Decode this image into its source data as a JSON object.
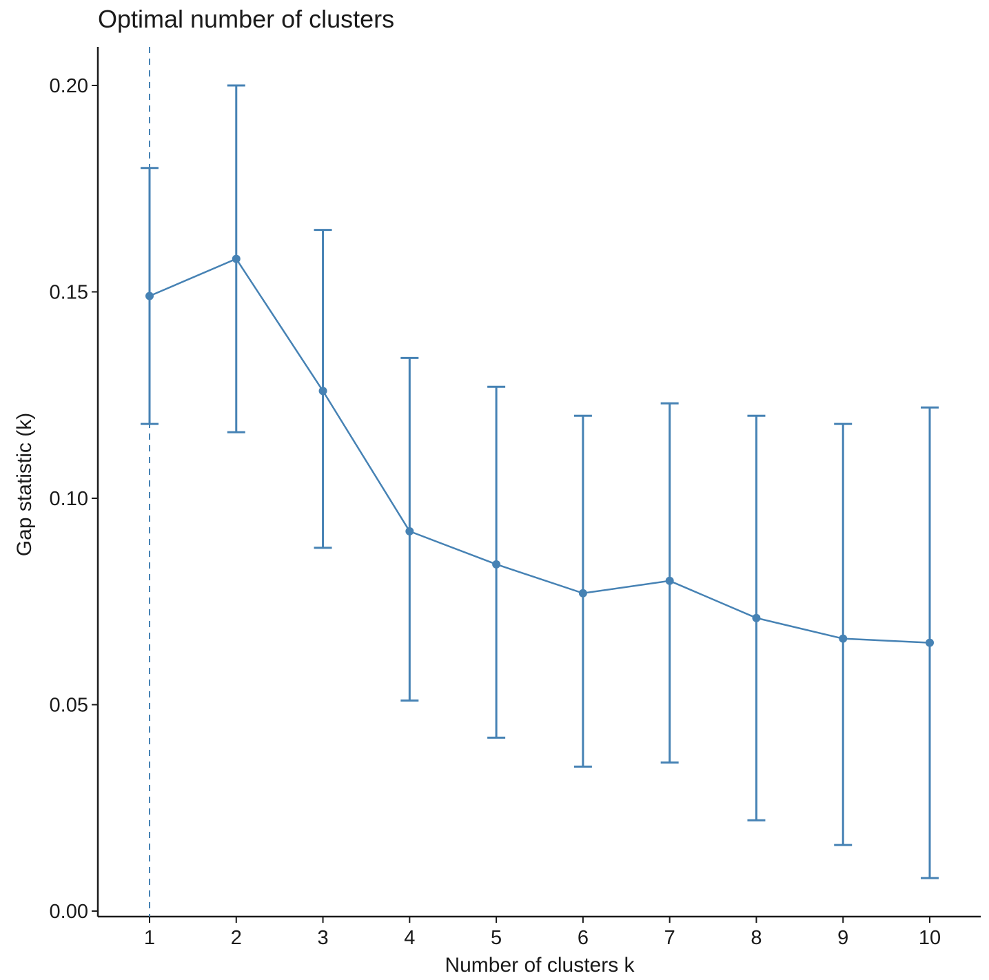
{
  "chart_data": {
    "type": "line",
    "title": "Optimal number of clusters",
    "xlabel": "Number of clusters k",
    "ylabel": "Gap statistic (k)",
    "x": [
      1,
      2,
      3,
      4,
      5,
      6,
      7,
      8,
      9,
      10
    ],
    "x_tick_labels": [
      "1",
      "2",
      "3",
      "4",
      "5",
      "6",
      "7",
      "8",
      "9",
      "10"
    ],
    "y_ticks": [
      0.0,
      0.05,
      0.1,
      0.15,
      0.2
    ],
    "y_tick_labels": [
      "0.00",
      "0.05",
      "0.10",
      "0.15",
      "0.20"
    ],
    "ylim": [
      0.0,
      0.209
    ],
    "xlim": [
      0.4,
      10.6
    ],
    "series": [
      {
        "values": [
          0.149,
          0.158,
          0.126,
          0.092,
          0.084,
          0.077,
          0.08,
          0.071,
          0.066,
          0.065
        ],
        "error_lower": [
          0.118,
          0.116,
          0.088,
          0.051,
          0.042,
          0.035,
          0.036,
          0.022,
          0.016,
          0.008
        ],
        "error_upper": [
          0.18,
          0.2,
          0.165,
          0.134,
          0.127,
          0.12,
          0.123,
          0.12,
          0.118,
          0.122
        ],
        "color": "#4682b4"
      }
    ],
    "vline": {
      "x": 1,
      "style": "dashed",
      "color": "#4682b4"
    },
    "grid": false,
    "legend": "none"
  }
}
